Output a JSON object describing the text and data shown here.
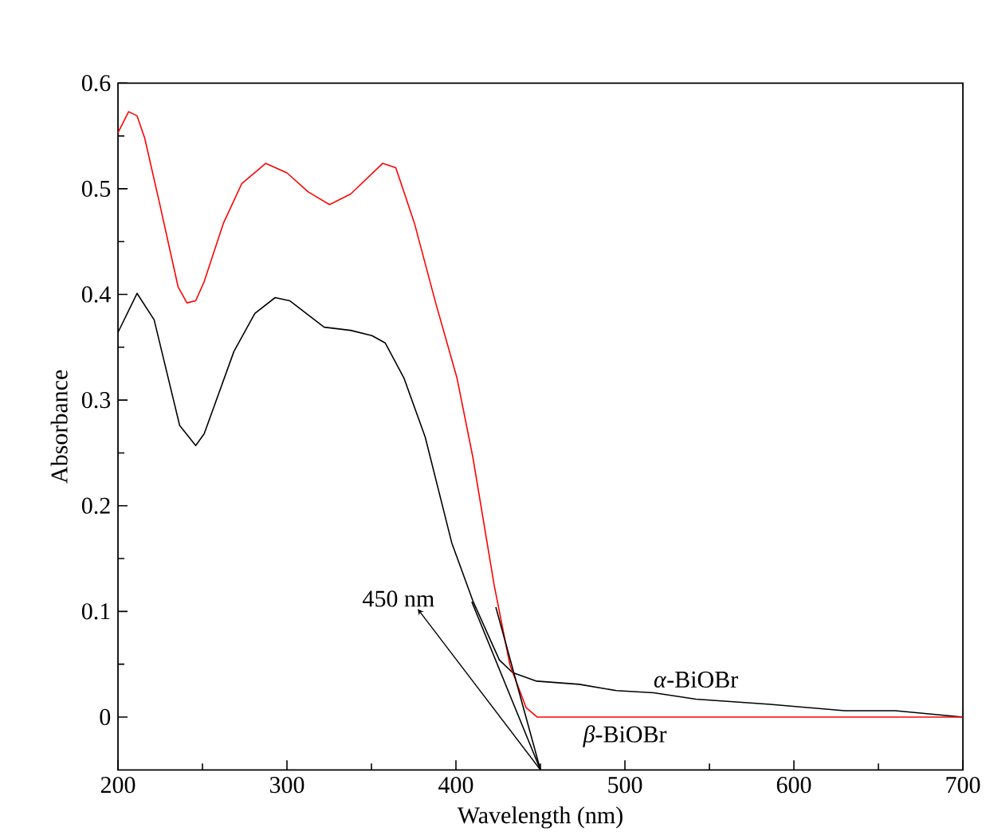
{
  "chart_data": {
    "type": "line",
    "xlabel": "Wavelength (nm)",
    "ylabel": "Absorbance",
    "xlim": [
      200,
      700
    ],
    "ylim": [
      -0.05,
      0.6
    ],
    "xticks": [
      200,
      300,
      400,
      500,
      600,
      700
    ],
    "yticks": [
      0,
      0.1,
      0.2,
      0.3,
      0.4,
      0.5,
      0.6
    ],
    "annotations": [
      {
        "text": "450 nm",
        "x": 450,
        "y": -0.05
      }
    ],
    "series": [
      {
        "name": "*α*-BiOBr",
        "color": "#000000",
        "x": [
          200,
          211.3,
          221.4,
          236.5,
          246,
          251,
          268.6,
          281,
          293,
          301.6,
          322,
          337.7,
          350.3,
          358.2,
          369.2,
          381.8,
          397.5,
          410,
          425.7,
          433.6,
          447.8,
          473,
          495,
          517,
          542,
          586,
          630,
          660,
          700
        ],
        "values": [
          0.364,
          0.401,
          0.376,
          0.276,
          0.257,
          0.268,
          0.346,
          0.382,
          0.397,
          0.394,
          0.369,
          0.366,
          0.361,
          0.354,
          0.321,
          0.265,
          0.165,
          0.11,
          0.054,
          0.042,
          0.034,
          0.031,
          0.025,
          0.023,
          0.017,
          0.012,
          0.006,
          0.006,
          0.0
        ]
      },
      {
        "name": "*β*-BiOBr",
        "color": "#ff0000",
        "x": [
          200,
          206.3,
          211.3,
          215.8,
          224.5,
          235.6,
          240.8,
          246,
          251,
          262.3,
          273.3,
          287.4,
          300,
          312.6,
          325.2,
          337.7,
          356.6,
          364.4,
          375.5,
          388,
          400.6,
          410,
          422.6,
          432,
          441.5,
          448,
          500,
          600,
          700
        ],
        "values": [
          0.553,
          0.573,
          0.569,
          0.548,
          0.487,
          0.407,
          0.392,
          0.394,
          0.412,
          0.467,
          0.505,
          0.524,
          0.515,
          0.497,
          0.485,
          0.495,
          0.524,
          0.52,
          0.467,
          0.392,
          0.321,
          0.246,
          0.125,
          0.049,
          0.009,
          0.0,
          0.0,
          0.0,
          0.0
        ]
      },
      {
        "type": "line",
        "color": "#000000",
        "x": [
          409.4,
          450
        ],
        "values": [
          0.109,
          -0.05
        ]
      },
      {
        "type": "line",
        "color": "#000000",
        "x": [
          423.6,
          450
        ],
        "values": [
          0.104,
          -0.05
        ]
      }
    ]
  }
}
